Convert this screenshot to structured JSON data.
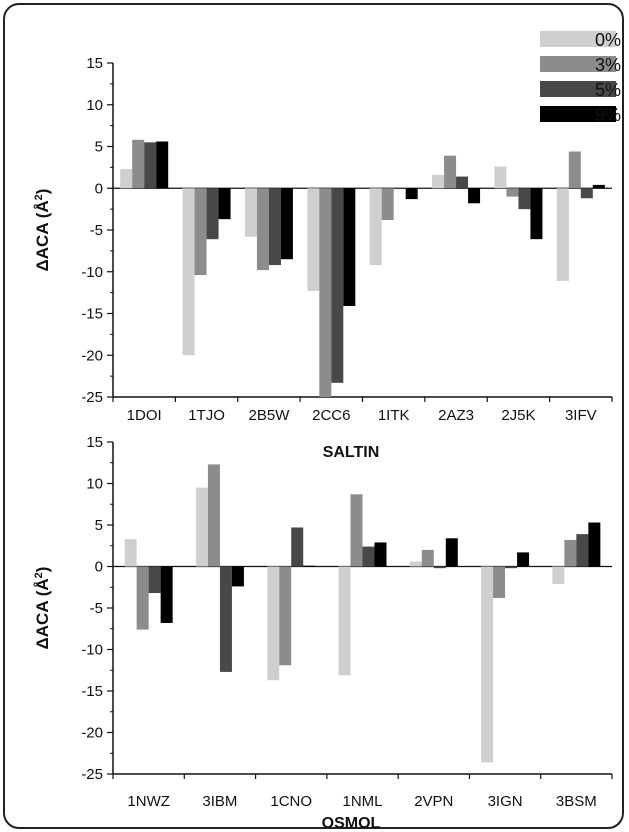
{
  "chart_data": [
    {
      "type": "bar",
      "categories": [
        "1DOI",
        "1TJO",
        "2B5W",
        "2CC6",
        "1ITK",
        "2AZ3",
        "2J5K",
        "3IFV"
      ],
      "series": [
        {
          "name": "0%",
          "values": [
            2.3,
            -20.0,
            -5.8,
            -12.3,
            -9.2,
            1.6,
            2.6,
            -11.1
          ]
        },
        {
          "name": "3%",
          "values": [
            5.8,
            -10.4,
            -9.8,
            -25.0,
            -3.8,
            3.9,
            -1.0,
            4.4
          ]
        },
        {
          "name": "5%",
          "values": [
            5.5,
            -6.1,
            -9.2,
            -23.3,
            0.0,
            1.4,
            -2.5,
            -1.2
          ]
        },
        {
          "name": "9%",
          "values": [
            5.6,
            -3.7,
            -8.5,
            -14.1,
            -1.3,
            -1.8,
            -6.1,
            0.4
          ]
        }
      ],
      "xlabel": "SALTIN",
      "ylabel": "ΔACA (Å²)",
      "ylim": [
        -25,
        15
      ],
      "yticks": [
        "15",
        "10",
        "5",
        "0",
        "-5",
        "-10",
        "-15",
        "-20",
        "-25"
      ],
      "legend": "top-right"
    },
    {
      "type": "bar",
      "categories": [
        "1NWZ",
        "3IBM",
        "1CNO",
        "1NML",
        "2VPN",
        "3IGN",
        "3BSM"
      ],
      "series": [
        {
          "name": "0%",
          "values": [
            3.3,
            9.5,
            -13.7,
            -13.1,
            0.6,
            -23.6,
            -2.1
          ]
        },
        {
          "name": "3%",
          "values": [
            -7.6,
            12.3,
            -11.9,
            8.7,
            2.0,
            -3.8,
            3.2
          ]
        },
        {
          "name": "5%",
          "values": [
            -3.2,
            -12.7,
            4.7,
            2.4,
            -0.2,
            -0.2,
            3.9
          ]
        },
        {
          "name": "9%",
          "values": [
            -6.8,
            -2.4,
            0.1,
            2.9,
            3.4,
            1.7,
            5.3
          ]
        }
      ],
      "xlabel": "OSMOL",
      "ylabel": "ΔACA (Å²)",
      "ylim": [
        -25,
        15
      ],
      "yticks": [
        "15",
        "10",
        "5",
        "0",
        "-5",
        "-10",
        "-15",
        "-20",
        "-25"
      ]
    }
  ],
  "legend": {
    "labels": [
      "0%",
      "3%",
      "5%",
      "9%"
    ],
    "colors": [
      "#cfcfcf",
      "#8c8c8c",
      "#484848",
      "#000000"
    ]
  }
}
